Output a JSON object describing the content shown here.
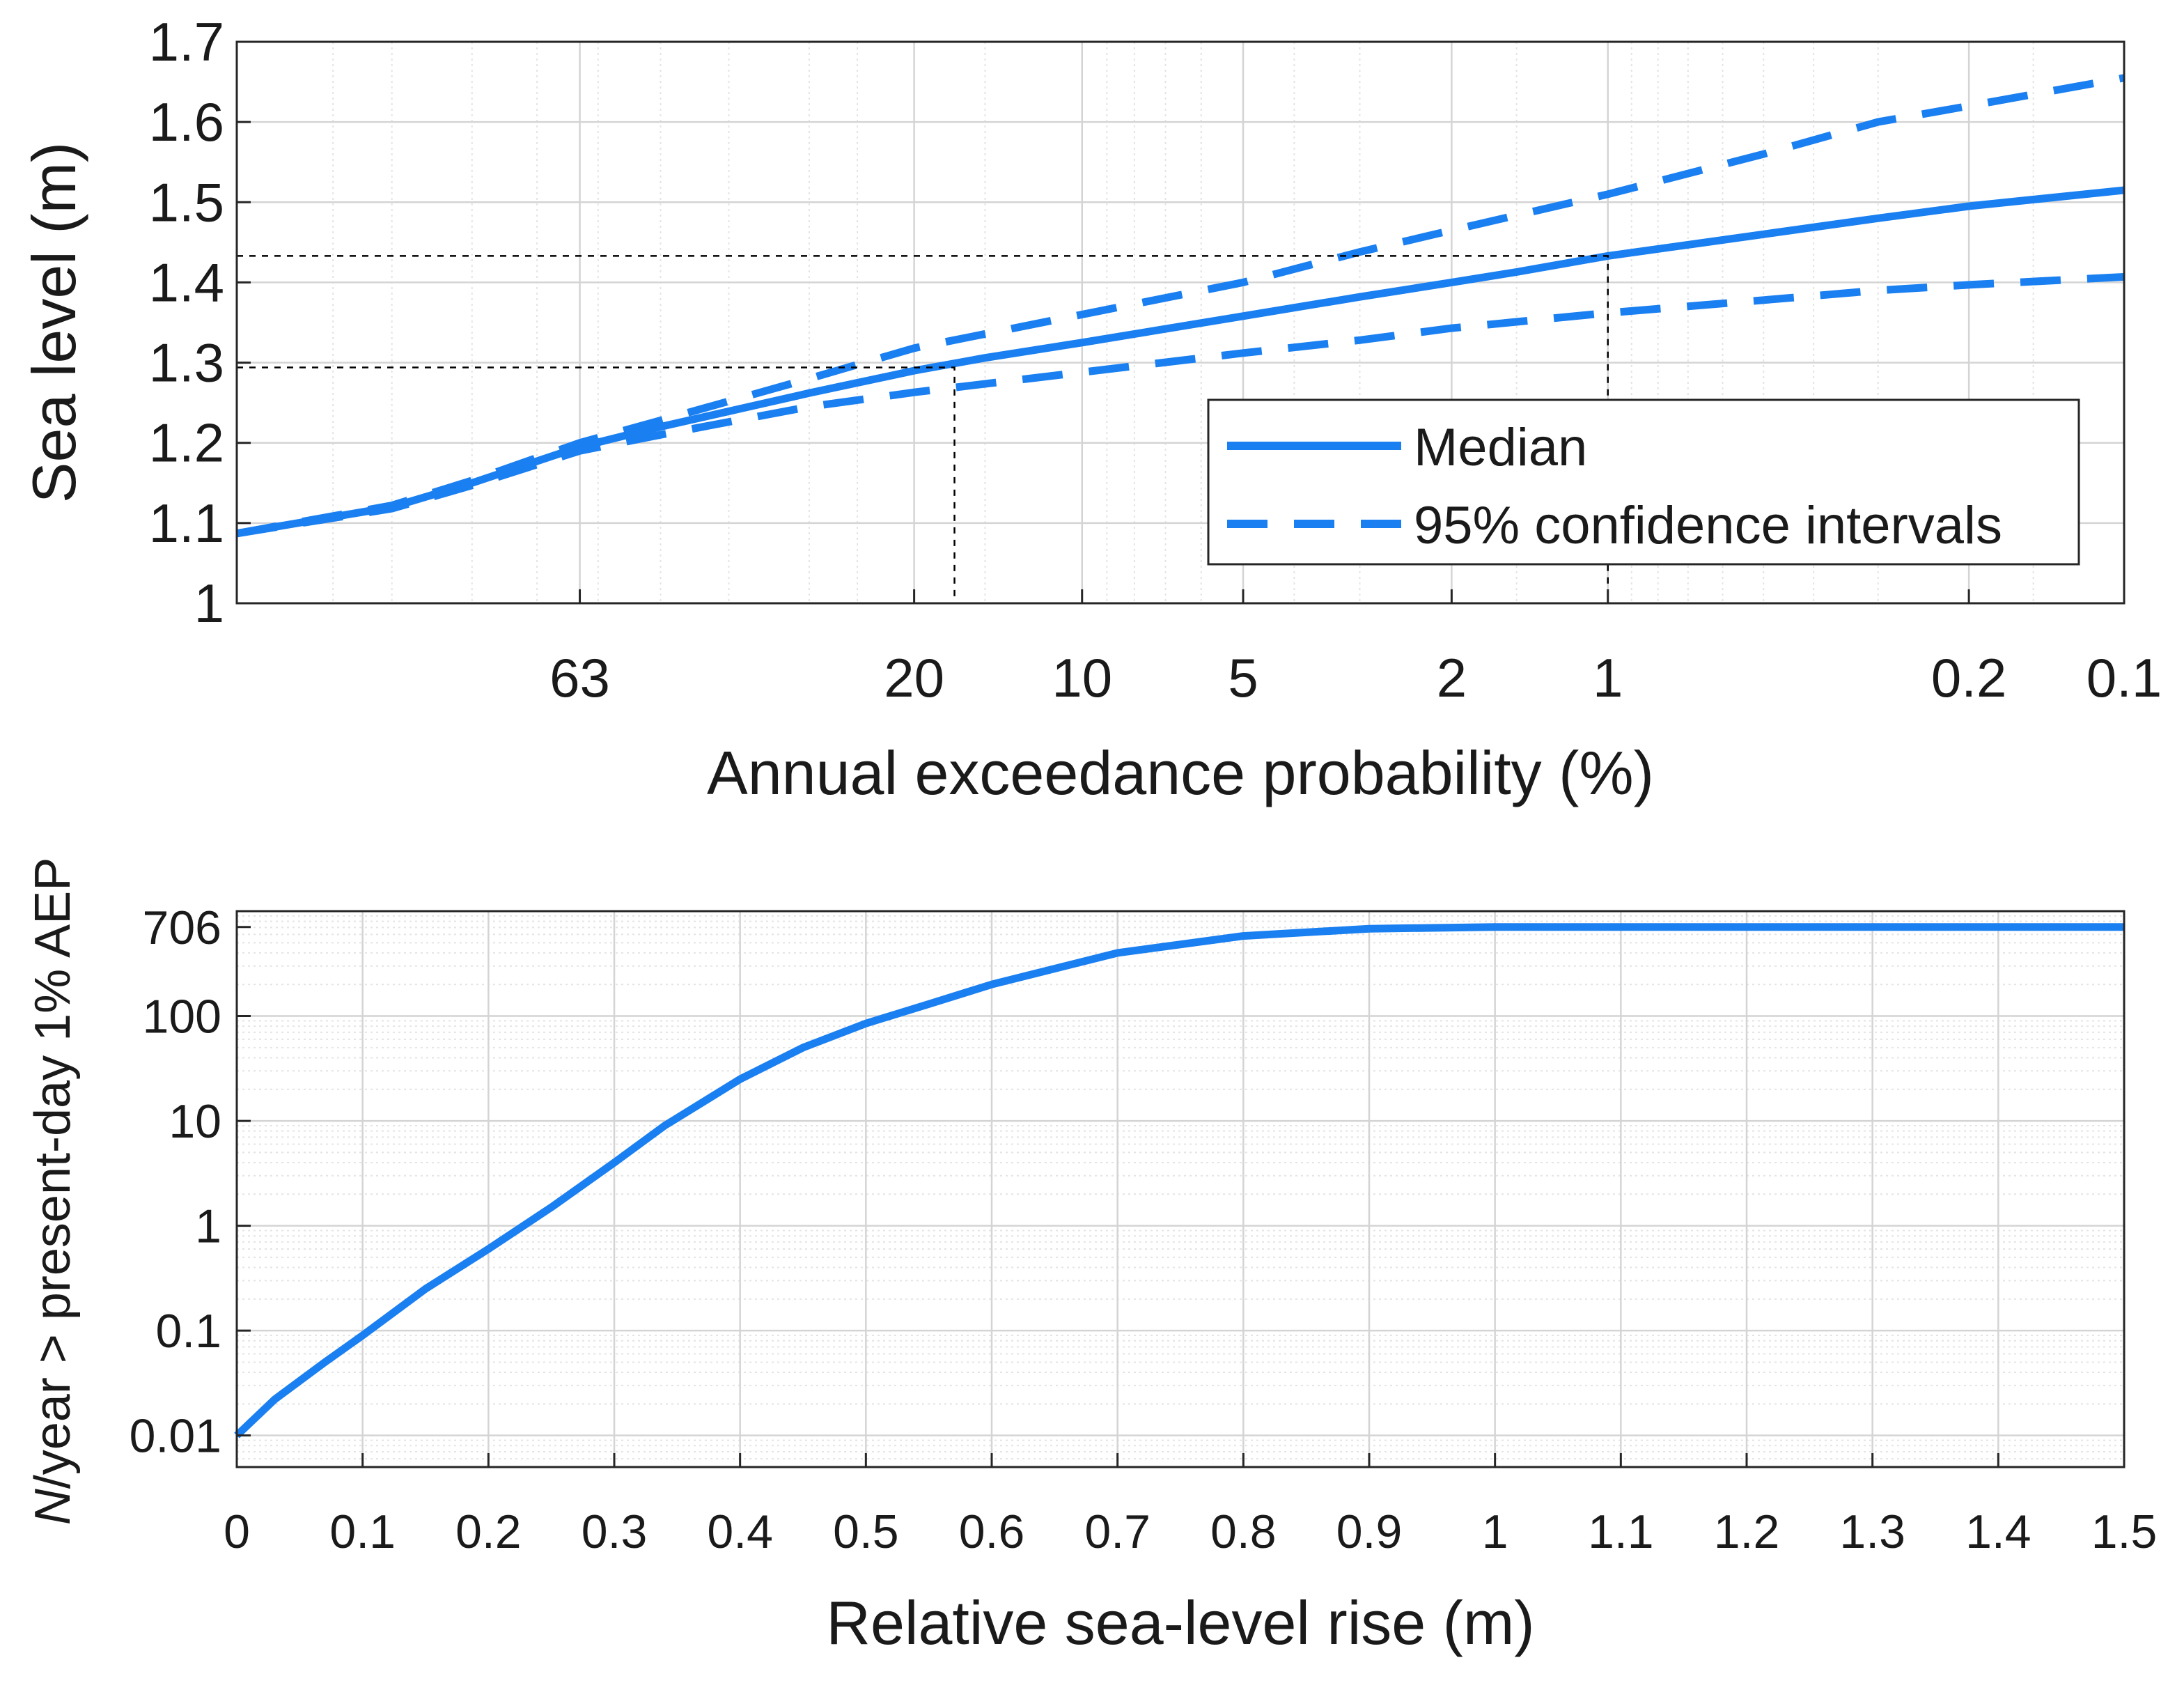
{
  "colors": {
    "series": "#1a7ff0",
    "axis": "#262626",
    "grid_major": "#d4d4d4",
    "grid_minor": "#e4e4e4",
    "reference": "#000000"
  },
  "chart_data": [
    {
      "type": "line",
      "x_scale": "gumbel_exceedance",
      "xlabel": "Annual exceedance probability (%)",
      "ylabel": "Sea level (m)",
      "x_tick_labels": [
        "63",
        "20",
        "10",
        "5",
        "2",
        "1",
        "0.2",
        "0.1"
      ],
      "x_tick_values": [
        63,
        20,
        10,
        5,
        2,
        1,
        0.2,
        0.1
      ],
      "xlim": [
        99,
        0.1
      ],
      "ylim": [
        1,
        1.7
      ],
      "y_tick_labels": [
        "1",
        "1.1",
        "1.2",
        "1.3",
        "1.4",
        "1.5",
        "1.6",
        "1.7"
      ],
      "y_tick_values": [
        1,
        1.1,
        1.2,
        1.3,
        1.4,
        1.5,
        1.6,
        1.7
      ],
      "series": [
        {
          "name": "Median",
          "style": "solid",
          "x": [
            99,
            90,
            80,
            63,
            50,
            30,
            20,
            15,
            10,
            5,
            3,
            2,
            1.5,
            1,
            0.5,
            0.3,
            0.2,
            0.1
          ],
          "y": [
            1.087,
            1.12,
            1.15,
            1.195,
            1.22,
            1.262,
            1.29,
            1.306,
            1.325,
            1.358,
            1.382,
            1.4,
            1.413,
            1.433,
            1.46,
            1.48,
            1.495,
            1.515
          ]
        },
        {
          "name": "95% confidence interval upper",
          "style": "dashed",
          "x": [
            99,
            90,
            80,
            63,
            50,
            30,
            20,
            10,
            5,
            3,
            2,
            1,
            0.5,
            0.3,
            0.2,
            0.1
          ],
          "y": [
            1.087,
            1.122,
            1.153,
            1.2,
            1.228,
            1.28,
            1.318,
            1.36,
            1.4,
            1.438,
            1.465,
            1.51,
            1.56,
            1.6,
            1.62,
            1.655
          ]
        },
        {
          "name": "95% confidence interval lower",
          "style": "dashed",
          "x": [
            99,
            90,
            80,
            63,
            50,
            30,
            20,
            10,
            5,
            3,
            2,
            1,
            0.5,
            0.3,
            0.2,
            0.1
          ],
          "y": [
            1.087,
            1.118,
            1.147,
            1.19,
            1.21,
            1.245,
            1.263,
            1.288,
            1.312,
            1.328,
            1.343,
            1.362,
            1.378,
            1.39,
            1.397,
            1.407
          ]
        }
      ],
      "reference_lines": [
        {
          "x": 17,
          "y": 1.294
        },
        {
          "x": 1,
          "y": 1.433
        }
      ],
      "legend": {
        "position": "bottom-right",
        "entries": [
          "Median",
          "95% confidence intervals"
        ]
      }
    },
    {
      "type": "line",
      "y_scale": "log",
      "xlabel": "Relative sea-level rise (m)",
      "ylabel_italic": "N",
      "ylabel_rest": "/year > present-day 1% AEP",
      "xlim": [
        0,
        1.5
      ],
      "x_tick_labels": [
        "0",
        "0.1",
        "0.2",
        "0.3",
        "0.4",
        "0.5",
        "0.6",
        "0.7",
        "0.8",
        "0.9",
        "1",
        "1.1",
        "1.2",
        "1.3",
        "1.4",
        "1.5"
      ],
      "ylim": [
        0.005,
        1000
      ],
      "y_tick_labels": [
        "0.01",
        "0.1",
        "1",
        "10",
        "100",
        "706"
      ],
      "y_tick_values": [
        0.01,
        0.1,
        1,
        10,
        100,
        706
      ],
      "series": [
        {
          "name": "Median",
          "x": [
            0,
            0.03,
            0.07,
            0.1,
            0.15,
            0.2,
            0.25,
            0.3,
            0.34,
            0.4,
            0.45,
            0.5,
            0.55,
            0.6,
            0.7,
            0.8,
            0.9,
            1.0,
            1.2,
            1.5
          ],
          "y": [
            0.01,
            0.022,
            0.05,
            0.09,
            0.25,
            0.6,
            1.5,
            4,
            9,
            25,
            50,
            85,
            130,
            200,
            400,
            580,
            680,
            706,
            706,
            706
          ]
        }
      ]
    }
  ]
}
